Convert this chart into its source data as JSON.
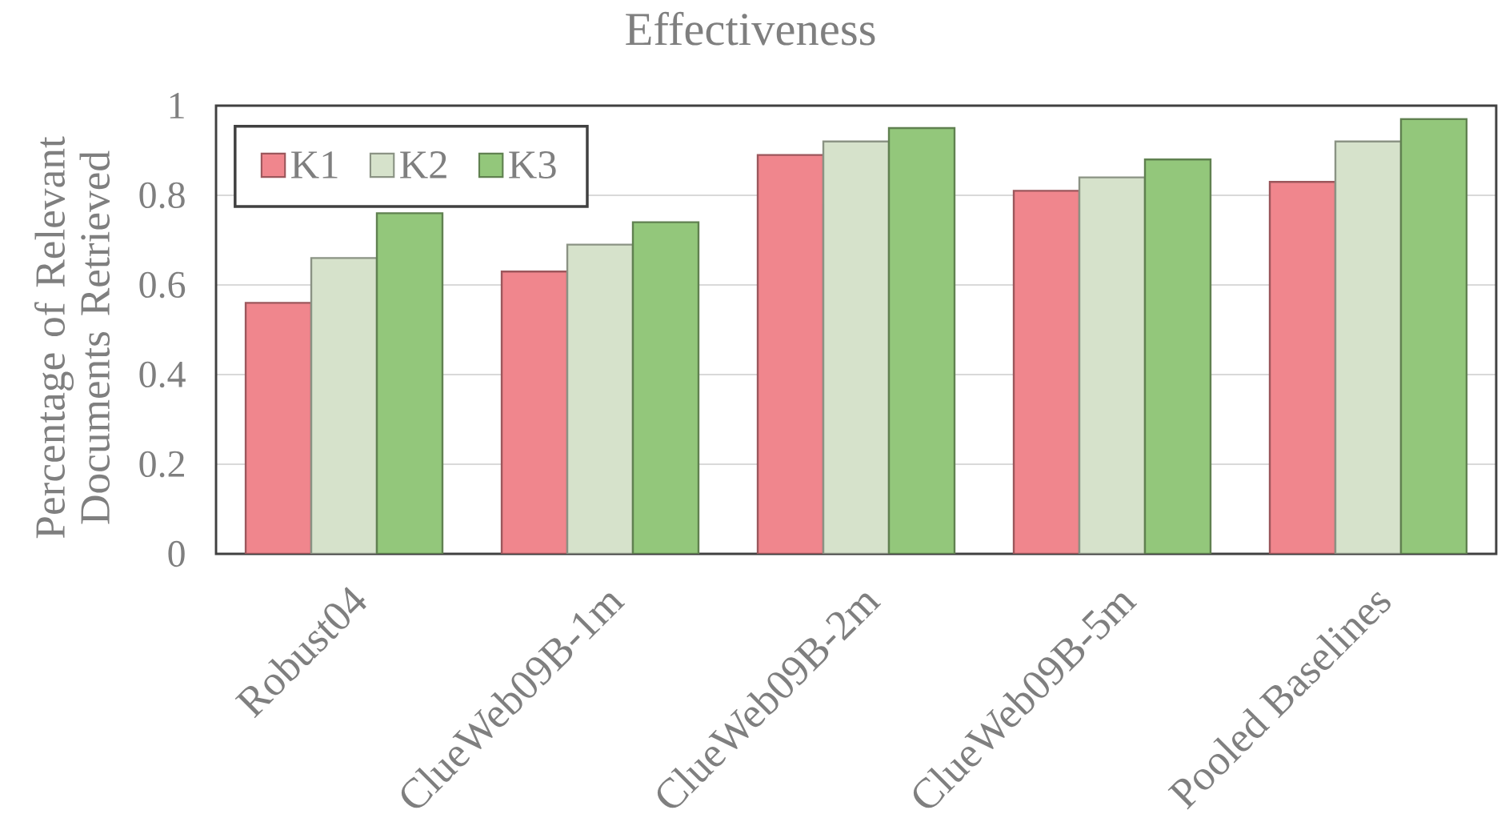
{
  "chart_data": {
    "type": "bar",
    "title": "Effectiveness",
    "ylabel": "Percentage of Relevant Documents Retrieved",
    "categories": [
      "Robust04",
      "ClueWeb09B-1m",
      "ClueWeb09B-2m",
      "ClueWeb09B-5m",
      "Pooled Baselines"
    ],
    "series": [
      {
        "name": "K1",
        "color": "#f0868d",
        "values": [
          0.56,
          0.63,
          0.89,
          0.81,
          0.83
        ]
      },
      {
        "name": "K2",
        "color": "#d6e2cb",
        "values": [
          0.66,
          0.69,
          0.92,
          0.84,
          0.92
        ]
      },
      {
        "name": "K3",
        "color": "#93c77b",
        "values": [
          0.76,
          0.74,
          0.95,
          0.88,
          0.97
        ]
      }
    ],
    "ylim": [
      0,
      1
    ],
    "yticks": [
      0,
      0.2,
      0.4,
      0.6,
      0.8,
      1
    ],
    "grid": "y",
    "legend": "top left"
  }
}
